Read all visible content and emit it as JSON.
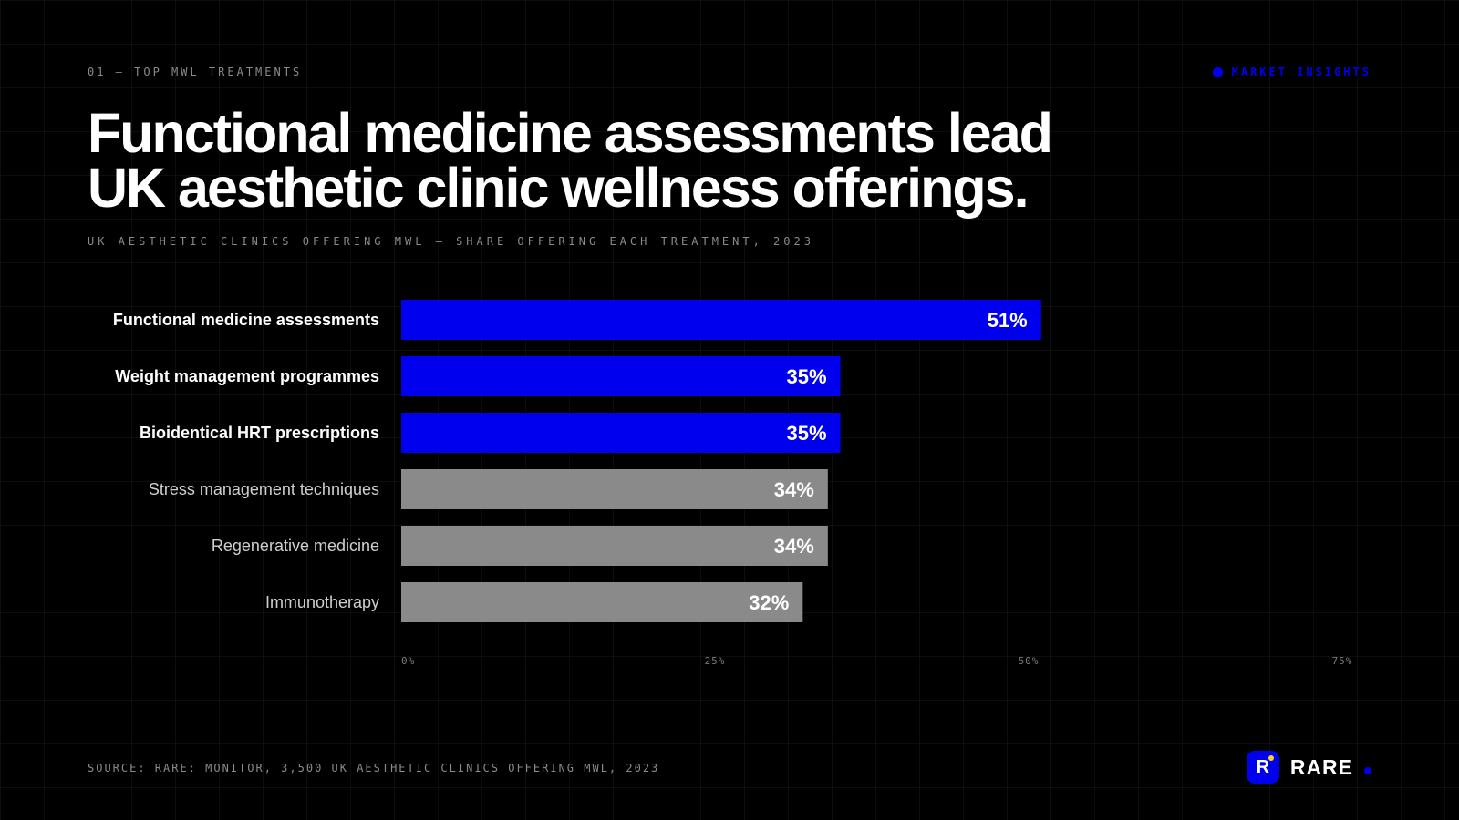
{
  "header": {
    "kicker": "01 — TOP MWL TREATMENTS",
    "badge": "MARKET INSIGHTS",
    "title_line1": "Functional medicine assessments lead",
    "title_line2": "UK aesthetic clinic wellness offerings.",
    "subtitle": "UK AESTHETIC CLINICS OFFERING MWL — SHARE OFFERING EACH TREATMENT, 2023"
  },
  "footer": {
    "source": "SOURCE: RARE: MONITOR, 3,500 UK AESTHETIC CLINICS OFFERING MWL, 2023",
    "logo_mark": "R",
    "logo_word": "RARE"
  },
  "colors": {
    "accent": "#0000ee",
    "muted_bar": "#8a8a8a",
    "background": "#000000"
  },
  "chart_data": {
    "type": "bar",
    "orientation": "horizontal",
    "categories": [
      "Functional medicine assessments",
      "Weight management programmes",
      "Bioidentical HRT prescriptions",
      "Stress management techniques",
      "Regenerative medicine",
      "Immunotherapy"
    ],
    "values": [
      51,
      35,
      35,
      34,
      34,
      32
    ],
    "value_labels": [
      "51%",
      "35%",
      "35%",
      "34%",
      "34%",
      "32%"
    ],
    "highlighted": [
      true,
      true,
      true,
      false,
      false,
      false
    ],
    "xlim": [
      0,
      75
    ],
    "xticks": [
      0,
      25,
      50,
      75
    ],
    "xtick_labels": [
      "0%",
      "25%",
      "50%",
      "75%"
    ],
    "grid": true
  }
}
